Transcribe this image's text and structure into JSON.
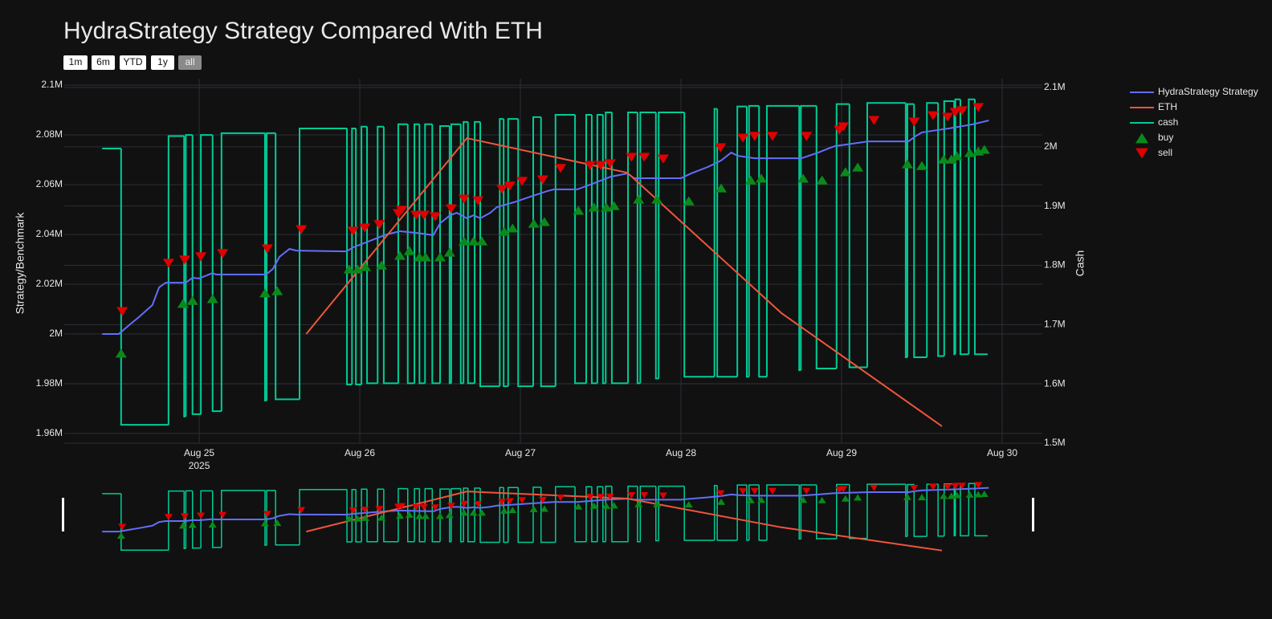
{
  "chart_data": {
    "type": "line",
    "title": "HydraStrategy Strategy Compared With ETH",
    "range_buttons": [
      "1m",
      "6m",
      "YTD",
      "1y",
      "all"
    ],
    "active_range_button": 4,
    "ylabel": "Strategy/Benchmark",
    "y2label": "Cash",
    "xlim": [
      "2025-08-24 03:50",
      "2025-08-30 06:00"
    ],
    "xticks": [
      {
        "value": "2025-08-25",
        "label": "Aug 25"
      },
      {
        "value": "2025-08-26",
        "label": "Aug 26"
      },
      {
        "value": "2025-08-27",
        "label": "Aug 27"
      },
      {
        "value": "2025-08-28",
        "label": "Aug 28"
      },
      {
        "value": "2025-08-29",
        "label": "Aug 29"
      },
      {
        "value": "2025-08-30",
        "label": "Aug 30"
      }
    ],
    "x_year_label": "2025",
    "ylim": [
      1956100,
      2102600
    ],
    "yticks": [
      {
        "value": 1960000,
        "label": "1.96M"
      },
      {
        "value": 1980000,
        "label": "1.98M"
      },
      {
        "value": 2000000,
        "label": "2M"
      },
      {
        "value": 2020000,
        "label": "2.02M"
      },
      {
        "value": 2040000,
        "label": "2.04M"
      },
      {
        "value": 2060000,
        "label": "2.06M"
      },
      {
        "value": 2080000,
        "label": "2.08M"
      },
      {
        "value": 2100000,
        "label": "2.1M"
      }
    ],
    "y2lim": [
      1500000,
      2114900
    ],
    "y2ticks": [
      {
        "value": 1500000,
        "label": "1.5M"
      },
      {
        "value": 1600000,
        "label": "1.6M"
      },
      {
        "value": 1700000,
        "label": "1.7M"
      },
      {
        "value": 1800000,
        "label": "1.8M"
      },
      {
        "value": 1900000,
        "label": "1.9M"
      },
      {
        "value": 2000000,
        "label": "2M"
      },
      {
        "value": 2100000,
        "label": "2.1M"
      }
    ],
    "grid": true,
    "legend": "right",
    "range_slider": true,
    "series": [
      {
        "name": "HydraStrategy Strategy",
        "color": "#636efa",
        "x": [
          "2025-08-24 09:30",
          "2025-08-24 12:00",
          "2025-08-24 13:30",
          "2025-08-24 15:00",
          "2025-08-24 17:00",
          "2025-08-24 18:00",
          "2025-08-24 19:00",
          "2025-08-24 22:00",
          "2025-08-24 23:00",
          "2025-08-25 00:00",
          "2025-08-25 02:00",
          "2025-08-25 02:30",
          "2025-08-25 10:00",
          "2025-08-25 11:00",
          "2025-08-25 12:00",
          "2025-08-25 13:30",
          "2025-08-25 14:30",
          "2025-08-25 22:00",
          "2025-08-25 23:00",
          "2025-08-26 01:30",
          "2025-08-26 04:00",
          "2025-08-26 06:00",
          "2025-08-26 08:30",
          "2025-08-26 11:00",
          "2025-08-26 12:00",
          "2025-08-26 13:30",
          "2025-08-26 14:30",
          "2025-08-26 16:00",
          "2025-08-26 17:00",
          "2025-08-26 18:00",
          "2025-08-26 19:30",
          "2025-08-26 20:30",
          "2025-08-26 23:00",
          "2025-08-27 01:30",
          "2025-08-27 04:00",
          "2025-08-27 05:00",
          "2025-08-27 08:30",
          "2025-08-27 11:00",
          "2025-08-27 13:30",
          "2025-08-27 16:00",
          "2025-08-27 17:00",
          "2025-08-27 20:30",
          "2025-08-28 00:00",
          "2025-08-28 01:30",
          "2025-08-28 04:00",
          "2025-08-28 06:00",
          "2025-08-28 07:30",
          "2025-08-28 08:30",
          "2025-08-28 11:00",
          "2025-08-28 18:00",
          "2025-08-28 20:30",
          "2025-08-28 22:00",
          "2025-08-28 23:00",
          "2025-08-29 04:00",
          "2025-08-29 10:00",
          "2025-08-29 11:00",
          "2025-08-29 12:00",
          "2025-08-29 16:00",
          "2025-08-29 18:00",
          "2025-08-29 19:30",
          "2025-08-29 22:00"
        ],
        "values": [
          2000000,
          2000000,
          2003500,
          2006800,
          2011600,
          2018700,
          2020600,
          2020600,
          2022600,
          2022300,
          2024500,
          2023900,
          2023900,
          2026100,
          2031000,
          2034200,
          2033500,
          2033200,
          2034800,
          2037400,
          2040000,
          2041300,
          2040600,
          2039700,
          2044500,
          2047700,
          2048700,
          2046500,
          2047700,
          2046500,
          2048700,
          2051000,
          2052900,
          2055200,
          2057400,
          2058100,
          2058100,
          2060600,
          2063200,
          2064500,
          2062600,
          2062600,
          2062600,
          2064500,
          2067100,
          2069700,
          2072900,
          2071600,
          2070600,
          2070600,
          2072900,
          2074500,
          2075500,
          2077400,
          2077400,
          2079400,
          2081000,
          2082600,
          2083500,
          2084200,
          2085800
        ]
      },
      {
        "name": "ETH",
        "color": "#ef553b",
        "x": [
          "2025-08-25 16:00",
          "2025-08-26 16:00",
          "2025-08-27 16:00",
          "2025-08-28 15:00",
          "2025-08-29 15:00"
        ],
        "values": [
          2000000,
          2078700,
          2064800,
          2008400,
          1962900
        ]
      },
      {
        "name": "cash",
        "color": "#00cc96",
        "axis": "y2",
        "shape": "hv",
        "x": [
          "2025-08-24 09:30",
          "2025-08-24 12:20",
          "2025-08-24 19:25",
          "2025-08-24 21:45",
          "2025-08-24 22:00",
          "2025-08-24 23:00",
          "2025-08-25 00:15",
          "2025-08-25 02:00",
          "2025-08-25 03:20",
          "2025-08-25 09:50",
          "2025-08-25 10:05",
          "2025-08-25 11:25",
          "2025-08-25 15:00",
          "2025-08-25 22:05",
          "2025-08-25 22:50",
          "2025-08-25 23:25",
          "2025-08-26 00:15",
          "2025-08-26 01:05",
          "2025-08-26 02:40",
          "2025-08-26 03:35",
          "2025-08-26 05:45",
          "2025-08-26 07:10",
          "2025-08-26 08:10",
          "2025-08-26 08:55",
          "2025-08-26 09:45",
          "2025-08-26 10:50",
          "2025-08-26 12:00",
          "2025-08-26 13:25",
          "2025-08-26 13:40",
          "2025-08-26 15:05",
          "2025-08-26 15:30",
          "2025-08-26 16:10",
          "2025-08-26 17:10",
          "2025-08-26 18:00",
          "2025-08-26 20:55",
          "2025-08-26 21:30",
          "2025-08-26 22:10",
          "2025-08-26 23:40",
          "2025-08-27 01:55",
          "2025-08-27 03:05",
          "2025-08-27 05:15",
          "2025-08-27 08:10",
          "2025-08-27 09:50",
          "2025-08-27 10:40",
          "2025-08-27 11:30",
          "2025-08-27 12:20",
          "2025-08-27 12:45",
          "2025-08-27 13:40",
          "2025-08-27 16:05",
          "2025-08-27 17:30",
          "2025-08-27 17:55",
          "2025-08-27 20:15",
          "2025-08-27 20:40",
          "2025-08-28 00:30",
          "2025-08-28 05:00",
          "2025-08-28 05:25",
          "2025-08-28 08:25",
          "2025-08-28 09:50",
          "2025-08-28 10:10",
          "2025-08-28 11:40",
          "2025-08-28 12:50",
          "2025-08-28 17:40",
          "2025-08-28 17:55",
          "2025-08-28 20:15",
          "2025-08-28 23:15",
          "2025-08-29 01:10",
          "2025-08-29 03:50",
          "2025-08-29 09:35",
          "2025-08-29 09:50",
          "2025-08-29 10:50",
          "2025-08-29 12:45",
          "2025-08-29 14:25",
          "2025-08-29 15:20",
          "2025-08-29 16:50",
          "2025-08-29 17:00",
          "2025-08-29 17:45",
          "2025-08-29 19:00",
          "2025-08-29 19:55",
          "2025-08-29 21:50"
        ],
        "values": [
          1997000,
          1531000,
          2018000,
          1545000,
          2020000,
          1549000,
          2020000,
          1554000,
          2023000,
          1572000,
          2023000,
          1574000,
          2031000,
          1599000,
          2031000,
          1599000,
          2034000,
          1601000,
          2034000,
          1601000,
          2038000,
          1601000,
          2038000,
          1601000,
          2038000,
          1601000,
          2035000,
          1601000,
          2038000,
          1601000,
          2042000,
          1601000,
          2042000,
          1596000,
          2047000,
          1596000,
          2047000,
          1596000,
          2050000,
          1596000,
          2054000,
          1601000,
          2054000,
          1601000,
          2054000,
          1601000,
          2058000,
          1601000,
          2058000,
          1601000,
          2058000,
          1609000,
          2058000,
          1612000,
          2064000,
          1612000,
          2068000,
          1612000,
          2069000,
          1612000,
          2069000,
          1623000,
          2069000,
          1626000,
          2072000,
          1628000,
          2074000,
          1645000,
          2072000,
          1645000,
          2074000,
          1647000,
          2077000,
          1650000,
          2080000,
          1650000,
          2080000,
          1650000,
          1650000
        ]
      },
      {
        "name": "buy",
        "type": "scatter",
        "marker": "triangle-up",
        "color": "#0a8a1a",
        "x": [
          "2025-08-24 12:20",
          "2025-08-24 21:35",
          "2025-08-24 23:00",
          "2025-08-25 02:00",
          "2025-08-25 09:50",
          "2025-08-25 11:40",
          "2025-08-25 22:25",
          "2025-08-25 23:40",
          "2025-08-26 00:50",
          "2025-08-26 03:15",
          "2025-08-26 06:00",
          "2025-08-26 07:25",
          "2025-08-26 08:55",
          "2025-08-26 09:50",
          "2025-08-26 12:00",
          "2025-08-26 13:25",
          "2025-08-26 15:35",
          "2025-08-26 17:00",
          "2025-08-26 18:15",
          "2025-08-26 21:35",
          "2025-08-26 22:50",
          "2025-08-27 02:00",
          "2025-08-27 03:35",
          "2025-08-27 08:40",
          "2025-08-27 11:00",
          "2025-08-27 12:50",
          "2025-08-27 14:00",
          "2025-08-27 17:40",
          "2025-08-27 20:25",
          "2025-08-28 01:10",
          "2025-08-28 06:00",
          "2025-08-28 10:25",
          "2025-08-28 12:00",
          "2025-08-28 18:15",
          "2025-08-28 21:05",
          "2025-08-29 00:35",
          "2025-08-29 02:25",
          "2025-08-29 09:50",
          "2025-08-29 12:00",
          "2025-08-29 15:15",
          "2025-08-29 16:25",
          "2025-08-29 17:15",
          "2025-08-29 19:10",
          "2025-08-29 20:25",
          "2025-08-29 21:20"
        ],
        "values": [
          1992300,
          2012300,
          2013500,
          2014200,
          2016500,
          2017400,
          2026100,
          2026100,
          2027100,
          2027700,
          2031600,
          2033500,
          2031000,
          2031000,
          2031000,
          2032900,
          2037400,
          2037400,
          2037400,
          2041300,
          2042600,
          2044500,
          2045200,
          2049700,
          2051000,
          2051000,
          2051600,
          2054200,
          2054200,
          2053500,
          2058700,
          2061900,
          2062600,
          2062600,
          2061900,
          2065200,
          2067100,
          2068400,
          2067700,
          2070300,
          2070300,
          2071600,
          2072900,
          2073500,
          2074200
        ]
      },
      {
        "name": "sell",
        "type": "scatter",
        "marker": "triangle-down",
        "color": "#e00000",
        "x": [
          "2025-08-24 12:30",
          "2025-08-24 19:25",
          "2025-08-24 21:50",
          "2025-08-25 00:15",
          "2025-08-25 03:30",
          "2025-08-25 10:10",
          "2025-08-25 15:15",
          "2025-08-25 23:00",
          "2025-08-26 00:45",
          "2025-08-26 02:55",
          "2025-08-26 05:45",
          "2025-08-26 06:15",
          "2025-08-26 08:25",
          "2025-08-26 09:35",
          "2025-08-26 11:15",
          "2025-08-26 13:40",
          "2025-08-26 15:35",
          "2025-08-26 17:40",
          "2025-08-26 21:15",
          "2025-08-26 22:25",
          "2025-08-27 00:15",
          "2025-08-27 03:20",
          "2025-08-27 06:00",
          "2025-08-27 10:25",
          "2025-08-27 12:00",
          "2025-08-27 13:25",
          "2025-08-27 16:35",
          "2025-08-27 18:30",
          "2025-08-27 21:20",
          "2025-08-28 05:55",
          "2025-08-28 09:15",
          "2025-08-28 11:00",
          "2025-08-28 13:40",
          "2025-08-28 18:45",
          "2025-08-28 23:40",
          "2025-08-29 00:15",
          "2025-08-29 04:50",
          "2025-08-29 10:50",
          "2025-08-29 13:40",
          "2025-08-29 15:50",
          "2025-08-29 17:00",
          "2025-08-29 18:00",
          "2025-08-29 20:25"
        ],
        "values": [
          2009000,
          2028400,
          2029700,
          2031000,
          2032300,
          2034200,
          2041900,
          2041300,
          2042600,
          2043900,
          2048400,
          2049700,
          2047700,
          2047700,
          2047100,
          2050300,
          2054200,
          2053500,
          2058100,
          2059400,
          2061300,
          2061900,
          2066500,
          2067700,
          2067700,
          2068400,
          2071000,
          2071000,
          2070300,
          2074800,
          2078700,
          2079400,
          2079400,
          2079400,
          2081900,
          2083200,
          2085800,
          2085200,
          2087700,
          2087100,
          2089000,
          2089700,
          2091000
        ]
      }
    ]
  }
}
